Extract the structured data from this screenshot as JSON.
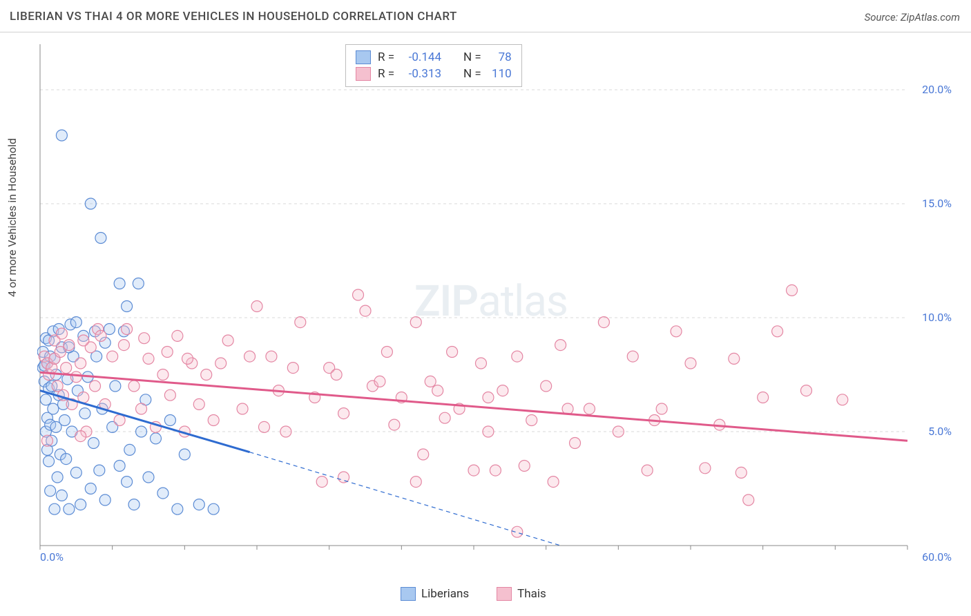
{
  "title": "LIBERIAN VS THAI 4 OR MORE VEHICLES IN HOUSEHOLD CORRELATION CHART",
  "source": "Source: ZipAtlas.com",
  "y_axis_label": "4 or more Vehicles in Household",
  "watermark_bold": "ZIP",
  "watermark_light": "atlas",
  "chart": {
    "type": "scatter",
    "xlim": [
      0,
      60
    ],
    "ylim": [
      0,
      22
    ],
    "x_tick_positions": [
      0,
      5,
      10,
      15,
      20,
      25,
      30,
      35,
      40,
      45,
      50,
      55,
      60
    ],
    "x_tick_labels_shown": {
      "0": "0.0%",
      "60": "60.0%"
    },
    "y_grid_positions": [
      5,
      10,
      15,
      20
    ],
    "y_tick_labels": {
      "5": "5.0%",
      "10": "10.0%",
      "15": "15.0%",
      "20": "20.0%"
    },
    "background_color": "#ffffff",
    "grid_color": "#d8d8d8",
    "grid_dash": "4,4",
    "axis_color": "#888888",
    "marker_radius": 8,
    "marker_stroke_width": 1.2,
    "marker_fill_opacity": 0.35,
    "series": [
      {
        "name": "Liberians",
        "color_fill": "#a8c8f0",
        "color_stroke": "#5b8bd4",
        "trend_color": "#2e6bd0",
        "trend_width": 3,
        "trend": {
          "x1": 0,
          "y1": 6.8,
          "x2_solid": 14.5,
          "y2_solid": 4.1,
          "x2_dash": 36,
          "y2_dash": 0
        },
        "R": "-0.144",
        "N": "78",
        "points": [
          [
            0.2,
            8.5
          ],
          [
            0.2,
            7.8
          ],
          [
            0.3,
            7.2
          ],
          [
            0.3,
            7.9
          ],
          [
            0.4,
            6.4
          ],
          [
            0.4,
            9.1
          ],
          [
            0.4,
            5.0
          ],
          [
            0.5,
            8.0
          ],
          [
            0.5,
            5.6
          ],
          [
            0.5,
            4.2
          ],
          [
            0.6,
            9.0
          ],
          [
            0.6,
            6.9
          ],
          [
            0.6,
            3.7
          ],
          [
            0.7,
            8.3
          ],
          [
            0.7,
            5.3
          ],
          [
            0.7,
            2.4
          ],
          [
            0.8,
            7.0
          ],
          [
            0.8,
            4.6
          ],
          [
            0.9,
            9.4
          ],
          [
            0.9,
            6.0
          ],
          [
            1.0,
            8.2
          ],
          [
            1.0,
            1.6
          ],
          [
            1.1,
            7.5
          ],
          [
            1.1,
            5.2
          ],
          [
            1.2,
            3.0
          ],
          [
            1.3,
            9.5
          ],
          [
            1.3,
            6.6
          ],
          [
            1.4,
            4.0
          ],
          [
            1.5,
            8.7
          ],
          [
            1.5,
            2.2
          ],
          [
            1.6,
            6.2
          ],
          [
            1.7,
            5.5
          ],
          [
            1.8,
            3.8
          ],
          [
            1.9,
            7.3
          ],
          [
            2.0,
            1.6
          ],
          [
            2.1,
            9.7
          ],
          [
            2.2,
            5.0
          ],
          [
            2.3,
            8.3
          ],
          [
            2.5,
            3.2
          ],
          [
            2.6,
            6.8
          ],
          [
            2.8,
            1.8
          ],
          [
            3.0,
            9.2
          ],
          [
            3.1,
            5.8
          ],
          [
            3.3,
            7.4
          ],
          [
            3.5,
            2.5
          ],
          [
            3.7,
            4.5
          ],
          [
            3.9,
            8.3
          ],
          [
            4.1,
            3.3
          ],
          [
            4.3,
            6.0
          ],
          [
            4.5,
            2.0
          ],
          [
            4.8,
            9.5
          ],
          [
            5.0,
            5.2
          ],
          [
            5.2,
            7.0
          ],
          [
            5.5,
            3.5
          ],
          [
            5.8,
            9.4
          ],
          [
            6.0,
            2.8
          ],
          [
            6.2,
            4.2
          ],
          [
            6.5,
            1.8
          ],
          [
            6.8,
            11.5
          ],
          [
            7.0,
            5.0
          ],
          [
            7.3,
            6.4
          ],
          [
            7.5,
            3.0
          ],
          [
            8.0,
            4.7
          ],
          [
            8.5,
            2.3
          ],
          [
            9.0,
            5.5
          ],
          [
            9.5,
            1.6
          ],
          [
            10.0,
            4.0
          ],
          [
            11.0,
            1.8
          ],
          [
            12.0,
            1.6
          ],
          [
            1.5,
            18.0
          ],
          [
            3.5,
            15.0
          ],
          [
            4.2,
            13.5
          ],
          [
            5.5,
            11.5
          ],
          [
            6.0,
            10.5
          ],
          [
            2.5,
            9.8
          ],
          [
            3.8,
            9.4
          ],
          [
            4.5,
            8.9
          ],
          [
            2.0,
            8.7
          ]
        ]
      },
      {
        "name": "Thais",
        "color_fill": "#f5c0cf",
        "color_stroke": "#e486a3",
        "trend_color": "#e05a8a",
        "trend_width": 3,
        "trend": {
          "x1": 0,
          "y1": 7.6,
          "x2_solid": 60,
          "y2_solid": 4.6,
          "x2_dash": 60,
          "y2_dash": 4.6
        },
        "R": "-0.313",
        "N": "110",
        "points": [
          [
            0.3,
            8.3
          ],
          [
            0.5,
            8.0
          ],
          [
            0.6,
            7.5
          ],
          [
            0.8,
            7.8
          ],
          [
            1.0,
            8.2
          ],
          [
            1.2,
            7.0
          ],
          [
            1.4,
            8.5
          ],
          [
            1.6,
            6.6
          ],
          [
            1.8,
            7.8
          ],
          [
            2.0,
            8.8
          ],
          [
            2.2,
            6.2
          ],
          [
            2.5,
            7.4
          ],
          [
            2.8,
            8.0
          ],
          [
            3.0,
            6.5
          ],
          [
            3.2,
            5.0
          ],
          [
            3.5,
            8.7
          ],
          [
            3.8,
            7.0
          ],
          [
            4.0,
            9.5
          ],
          [
            4.5,
            6.2
          ],
          [
            5.0,
            8.3
          ],
          [
            5.5,
            5.5
          ],
          [
            6.0,
            9.5
          ],
          [
            6.5,
            7.0
          ],
          [
            7.0,
            6.0
          ],
          [
            7.5,
            8.2
          ],
          [
            8.0,
            5.2
          ],
          [
            8.5,
            7.5
          ],
          [
            9.0,
            6.6
          ],
          [
            9.5,
            9.2
          ],
          [
            10.0,
            5.0
          ],
          [
            10.5,
            8.0
          ],
          [
            11.0,
            6.2
          ],
          [
            11.5,
            7.5
          ],
          [
            12.0,
            5.5
          ],
          [
            13.0,
            9.0
          ],
          [
            14.0,
            6.0
          ],
          [
            15.0,
            10.5
          ],
          [
            15.5,
            5.2
          ],
          [
            16.0,
            8.3
          ],
          [
            16.5,
            6.8
          ],
          [
            17.0,
            5.0
          ],
          [
            18.0,
            9.8
          ],
          [
            19.0,
            6.5
          ],
          [
            20.0,
            7.8
          ],
          [
            21.0,
            5.8
          ],
          [
            22.0,
            11.0
          ],
          [
            22.5,
            10.3
          ],
          [
            23.0,
            7.0
          ],
          [
            24.0,
            8.5
          ],
          [
            24.5,
            5.3
          ],
          [
            25.0,
            6.5
          ],
          [
            26.0,
            9.8
          ],
          [
            26.5,
            4.0
          ],
          [
            27.0,
            7.2
          ],
          [
            28.0,
            5.6
          ],
          [
            28.5,
            8.5
          ],
          [
            29.0,
            6.0
          ],
          [
            30.0,
            3.3
          ],
          [
            30.5,
            8.0
          ],
          [
            31.0,
            5.0
          ],
          [
            31.5,
            3.3
          ],
          [
            32.0,
            6.8
          ],
          [
            33.0,
            8.3
          ],
          [
            33.5,
            3.5
          ],
          [
            34.0,
            5.5
          ],
          [
            35.0,
            7.0
          ],
          [
            35.5,
            2.8
          ],
          [
            36.0,
            8.8
          ],
          [
            37.0,
            4.5
          ],
          [
            38.0,
            6.0
          ],
          [
            39.0,
            9.8
          ],
          [
            40.0,
            5.0
          ],
          [
            41.0,
            8.3
          ],
          [
            42.0,
            3.3
          ],
          [
            43.0,
            6.0
          ],
          [
            44.0,
            9.4
          ],
          [
            45.0,
            8.0
          ],
          [
            46.0,
            3.4
          ],
          [
            47.0,
            5.3
          ],
          [
            48.0,
            8.2
          ],
          [
            48.5,
            3.2
          ],
          [
            49.0,
            2.0
          ],
          [
            50.0,
            6.5
          ],
          [
            51.0,
            9.4
          ],
          [
            52.0,
            11.2
          ],
          [
            53.0,
            6.8
          ],
          [
            55.5,
            6.4
          ],
          [
            33.0,
            0.6
          ],
          [
            26.0,
            2.8
          ],
          [
            21.0,
            3.0
          ],
          [
            19.5,
            2.8
          ],
          [
            0.5,
            4.6
          ],
          [
            2.8,
            4.8
          ],
          [
            1.0,
            9.0
          ],
          [
            1.5,
            9.3
          ],
          [
            3.0,
            9.0
          ],
          [
            4.2,
            9.2
          ],
          [
            5.8,
            8.8
          ],
          [
            7.2,
            9.1
          ],
          [
            8.8,
            8.5
          ],
          [
            10.2,
            8.2
          ],
          [
            12.5,
            8.0
          ],
          [
            14.5,
            8.3
          ],
          [
            17.5,
            7.8
          ],
          [
            20.5,
            7.5
          ],
          [
            23.5,
            7.2
          ],
          [
            27.5,
            6.8
          ],
          [
            31.0,
            6.5
          ],
          [
            36.5,
            6.0
          ],
          [
            42.5,
            5.5
          ]
        ]
      }
    ]
  },
  "legend_bottom": [
    {
      "label": "Liberians",
      "fill": "#a8c8f0",
      "stroke": "#5b8bd4"
    },
    {
      "label": "Thais",
      "fill": "#f5c0cf",
      "stroke": "#e486a3"
    }
  ],
  "legend_top_labels": {
    "R": "R =",
    "N": "N ="
  },
  "colors": {
    "tick_label": "#4a78d6",
    "legend_value": "#4a78d6",
    "legend_text": "#333333"
  }
}
